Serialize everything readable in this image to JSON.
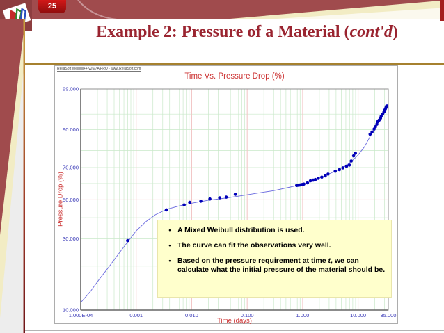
{
  "slide": {
    "number": "25",
    "title_prefix": "Example 2: Pressure of a Material (",
    "title_italic": "cont'd",
    "title_suffix": ")"
  },
  "chart": {
    "watermark": "ReliaSoft Weibull++ v26/7A PRO - www.ReliaSoft.com"
  },
  "note_box": {
    "bullet_char": "•",
    "bullets": [
      {
        "text": "A Mixed Weibull distribution is used."
      },
      {
        "text": "The curve can fit the observations very well."
      },
      {
        "prefix": "Based on the pressure requirement at time ",
        "italic": "t",
        "suffix": ", we can calculate what the initial pressure of the material should be."
      }
    ]
  },
  "colors": {
    "banner_maroon": "#A04B4D",
    "title_red": "#9A2430",
    "axis_label_red": "#CC3333",
    "tick_blue": "#3A3AB8",
    "point_blue": "#0000B8",
    "curve_blue": "#6A6ADF",
    "grid_green": "#C9E8C9",
    "grid_pink": "#F2C4C4",
    "frame_gray": "#909090",
    "axis_gray": "#666666",
    "note_yellow": "#FFFFCC",
    "gold": "#A6812F"
  },
  "chart_data": {
    "type": "scatter",
    "title": "Time Vs. Pressure Drop (%)",
    "xlabel": "Time (days)",
    "ylabel": "Pressure Drop (%)",
    "x_scale": "log",
    "y_scale": "weibull-probability",
    "xlim": [
      0.0001,
      35
    ],
    "ylim": [
      10,
      99
    ],
    "x_ticks": [
      0.0001,
      0.001,
      0.01,
      0.1,
      1,
      10,
      35
    ],
    "x_tick_labels": [
      "1.000E-04",
      "0.001",
      "0.010",
      "0.100",
      "1.000",
      "10.000",
      "35.000"
    ],
    "y_ticks": [
      99,
      90,
      70,
      50,
      30,
      10
    ],
    "y_tick_labels": [
      "99.000",
      "90.000",
      "70.000",
      "50.000",
      "30.000",
      "10.000"
    ],
    "grid": {
      "h_lines": [
        95,
        90,
        80,
        70,
        60,
        50,
        40,
        30,
        20
      ],
      "h_accent": [
        50
      ],
      "v_accent": [
        0.001,
        0.01,
        0.1,
        1,
        10
      ]
    },
    "legend": "none",
    "series": [
      {
        "name": "mixed-weibull-fit-line",
        "type": "line",
        "points": [
          [
            0.0001,
            11.3
          ],
          [
            0.00015,
            13.5
          ],
          [
            0.00022,
            16.5
          ],
          [
            0.00033,
            20
          ],
          [
            0.0005,
            24.5
          ],
          [
            0.00075,
            29.5
          ],
          [
            0.001,
            33.5
          ],
          [
            0.0015,
            38
          ],
          [
            0.0022,
            41.5
          ],
          [
            0.0035,
            44.5
          ],
          [
            0.006,
            46.5
          ],
          [
            0.01,
            48
          ],
          [
            0.02,
            49.7
          ],
          [
            0.04,
            51
          ],
          [
            0.08,
            52.5
          ],
          [
            0.15,
            54
          ],
          [
            0.3,
            55.5
          ],
          [
            0.6,
            57.8
          ],
          [
            0.9,
            59.2
          ],
          [
            1.2,
            60.3
          ],
          [
            1.8,
            62.8
          ],
          [
            2.6,
            65
          ],
          [
            4,
            68
          ],
          [
            6,
            71
          ],
          [
            8,
            74.5
          ],
          [
            10,
            77.5
          ],
          [
            13,
            82
          ],
          [
            16,
            86.5
          ],
          [
            20,
            91
          ],
          [
            24,
            93.7
          ],
          [
            28,
            95.3
          ],
          [
            32,
            96.6
          ],
          [
            34,
            97.2
          ]
        ]
      },
      {
        "name": "pressure-drop-observations",
        "type": "scatter",
        "points": [
          [
            0.0007,
            29.2
          ],
          [
            0.0035,
            44.2
          ],
          [
            0.0073,
            47.0
          ],
          [
            0.0092,
            48.5
          ],
          [
            0.0146,
            49.2
          ],
          [
            0.0213,
            50.5
          ],
          [
            0.032,
            51.2
          ],
          [
            0.042,
            51.6
          ],
          [
            0.061,
            53.3
          ],
          [
            0.78,
            58.8
          ],
          [
            0.82,
            58.9
          ],
          [
            0.86,
            59.0
          ],
          [
            0.9,
            59.1
          ],
          [
            0.95,
            59.3
          ],
          [
            1.0,
            59.4
          ],
          [
            1.05,
            59.6
          ],
          [
            1.22,
            60.4
          ],
          [
            1.38,
            61.7
          ],
          [
            1.55,
            62.1
          ],
          [
            1.69,
            62.5
          ],
          [
            1.91,
            63.3
          ],
          [
            2.21,
            64.0
          ],
          [
            2.56,
            64.8
          ],
          [
            2.87,
            65.9
          ],
          [
            3.86,
            67.7
          ],
          [
            4.59,
            68.7
          ],
          [
            5.33,
            69.8
          ],
          [
            6.17,
            70.8
          ],
          [
            6.95,
            71.5
          ],
          [
            7.5,
            74.0
          ],
          [
            8.28,
            77.0
          ],
          [
            8.93,
            78.5
          ],
          [
            16.4,
            88.1
          ],
          [
            17.8,
            89.0
          ],
          [
            19.4,
            90.2
          ],
          [
            20.6,
            91.1
          ],
          [
            21.8,
            92.0
          ],
          [
            22.5,
            92.8
          ],
          [
            23.9,
            93.3
          ],
          [
            25.3,
            93.9
          ],
          [
            26.0,
            94.4
          ],
          [
            27.6,
            95.0
          ],
          [
            29.2,
            95.5
          ],
          [
            30.0,
            95.9
          ],
          [
            30.9,
            96.2
          ],
          [
            31.8,
            96.5
          ],
          [
            32.7,
            96.8
          ]
        ]
      }
    ]
  }
}
